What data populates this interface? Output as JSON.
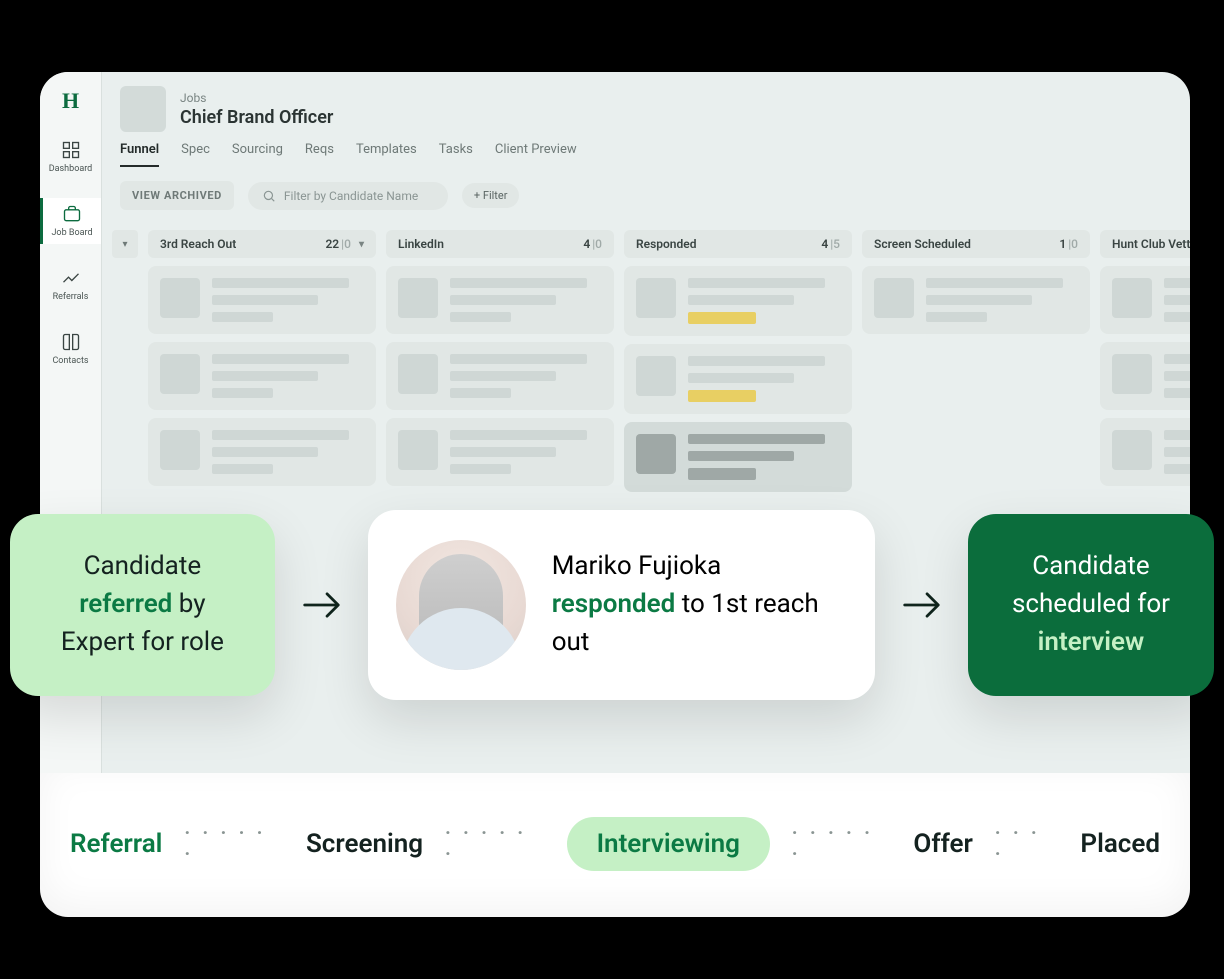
{
  "sidebar": {
    "logo_letter": "H",
    "items": [
      {
        "key": "dashboard",
        "label": "Dashboard"
      },
      {
        "key": "job-board",
        "label": "Job Board",
        "active": true
      },
      {
        "key": "referrals",
        "label": "Referrals"
      },
      {
        "key": "contacts",
        "label": "Contacts"
      }
    ]
  },
  "header": {
    "breadcrumb": "Jobs",
    "title": "Chief Brand Officer",
    "tabs": [
      "Funnel",
      "Spec",
      "Sourcing",
      "Reqs",
      "Templates",
      "Tasks",
      "Client Preview"
    ],
    "active_tab": "Funnel",
    "view_archived_label": "VIEW ARCHIVED",
    "search_placeholder": "Filter by Candidate Name",
    "filter_label": "+  Filter"
  },
  "board": {
    "columns": [
      {
        "title": "3rd Reach Out",
        "count": 22,
        "muted": 0,
        "caret": true,
        "cards": [
          {
            "yellow": false
          },
          {
            "yellow": false
          },
          {
            "yellow": false
          }
        ]
      },
      {
        "title": "LinkedIn",
        "count": 4,
        "muted": 0,
        "cards": [
          {
            "yellow": false
          },
          {
            "yellow": false
          },
          {
            "yellow": false
          }
        ]
      },
      {
        "title": "Responded",
        "count": 4,
        "muted": 5,
        "cards": [
          {
            "yellow": true
          },
          {
            "yellow": true
          },
          {
            "yellow": true,
            "selected": true
          }
        ]
      },
      {
        "title": "Screen Scheduled",
        "count": 1,
        "muted": 0,
        "cards": [
          {
            "yellow": false
          }
        ]
      },
      {
        "title": "Hunt Club Vetted",
        "count": null,
        "muted": null,
        "cards": [
          {
            "yellow": false
          },
          {
            "yellow": false
          },
          {
            "yellow": false
          }
        ]
      }
    ]
  },
  "overlay": {
    "left": {
      "pre": "Candidate ",
      "em": "referred",
      "post": " by Expert for role"
    },
    "center": {
      "name": "Mariko Fujioka",
      "em": "responded",
      "post": " to 1st reach out"
    },
    "right": {
      "pre": "Candidate scheduled for ",
      "em": "interview"
    }
  },
  "pipeline": {
    "stages": [
      {
        "label": "Referral",
        "style": "green"
      },
      {
        "label": "Screening",
        "style": "plain"
      },
      {
        "label": "Interviewing",
        "style": "pill"
      },
      {
        "label": "Offer",
        "style": "plain"
      },
      {
        "label": "Placed",
        "style": "plain"
      }
    ],
    "dots": "· · · · · ·",
    "dots_short": "· · · ·"
  },
  "colors": {
    "brand_green": "#0b7a44",
    "dark_green": "#0b6d3c",
    "light_green": "#c5f0c5",
    "app_bg": "#e9efee",
    "panel": "#e1e7e5",
    "yellow": "#e8cf63"
  }
}
